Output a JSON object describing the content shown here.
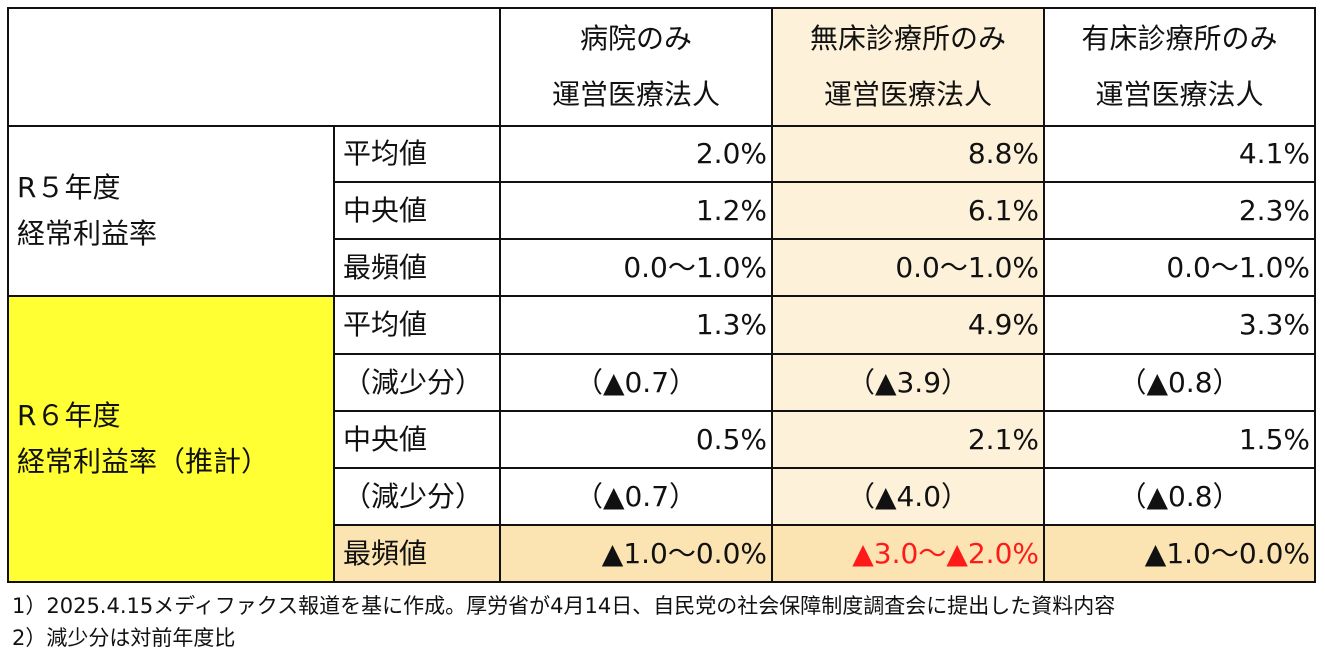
{
  "header": {
    "col1": [
      "病院のみ",
      "運営医療法人"
    ],
    "col2": [
      "無床診療所のみ",
      "運営医療法人"
    ],
    "col3": [
      "有床診療所のみ",
      "運営医療法人"
    ]
  },
  "r5": {
    "label": [
      "R５年度",
      "経常利益率"
    ],
    "rows": [
      {
        "name": "平均値",
        "v1": "2.0%",
        "v2": "8.8%",
        "v3": "4.1%"
      },
      {
        "name": "中央値",
        "v1": "1.2%",
        "v2": "6.1%",
        "v3": "2.3%"
      },
      {
        "name": "最頻値",
        "v1": "0.0〜1.0%",
        "v2": "0.0〜1.0%",
        "v3": "0.0〜1.0%"
      }
    ]
  },
  "r6": {
    "label": [
      "R６年度",
      "経常利益率（推計）"
    ],
    "rows": [
      {
        "name": "平均値",
        "v1": "1.3%",
        "v2": "4.9%",
        "v3": "3.3%"
      },
      {
        "name": "（減少分）",
        "v1": "（▲0.7）",
        "v2": "（▲3.9）",
        "v3": "（▲0.8）"
      },
      {
        "name": "中央値",
        "v1": "0.5%",
        "v2": "2.1%",
        "v3": "1.5%"
      },
      {
        "name": "（減少分）",
        "v1": "（▲0.7）",
        "v2": "（▲4.0）",
        "v3": "（▲0.8）"
      },
      {
        "name": "最頻値",
        "v1": "▲1.0〜0.0%",
        "v2": "▲3.0〜▲2.0%",
        "v3": "▲1.0〜0.0%"
      }
    ]
  },
  "colors": {
    "highlight_yellow": "#ffff33",
    "highlight_tan": "#fbe3b2",
    "column_tint": "#fdf1d9",
    "emphasis_red": "#ff1a1a"
  },
  "notes": [
    "1）2025.4.15メディファクス報道を基に作成。厚労省が4月14日、自民党の社会保障制度調査会に提出した資料内容",
    "2）減少分は対前年度比"
  ]
}
